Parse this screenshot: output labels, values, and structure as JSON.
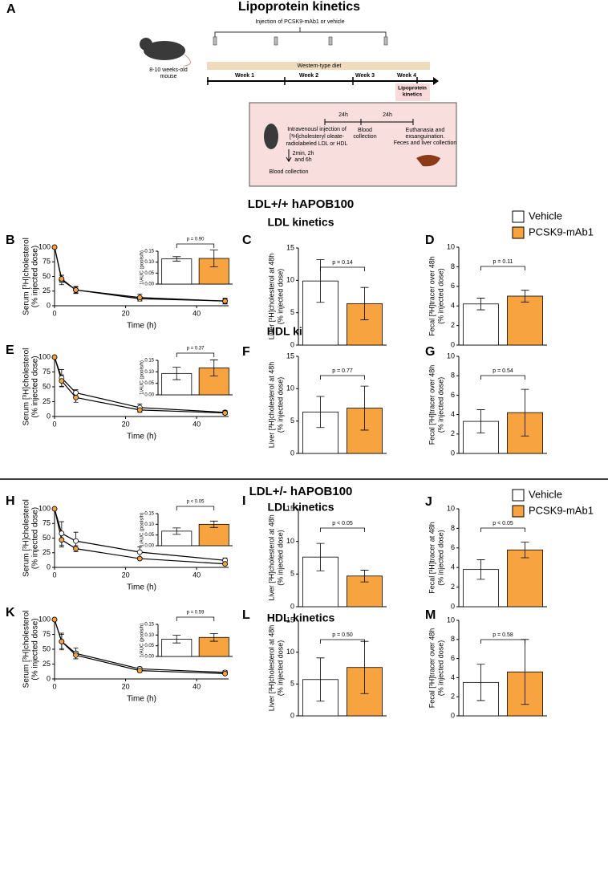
{
  "diagram": {
    "label": "A",
    "title": "Lipoprotein kinetics",
    "injection": "Injection of PCSK9-mAb1 or vehicle",
    "mouse": [
      "8-10 weeks-old",
      "mouse"
    ],
    "diet": "Western-type diet",
    "weeks": [
      "Week 1",
      "Week 2",
      "Week 3",
      "Week 4"
    ],
    "kinetics_box": [
      "Lipoprotein",
      "kinetics"
    ],
    "protocol": {
      "intervals": [
        "24h",
        "24h"
      ],
      "injection": [
        "Intravenousl injection of",
        "[³H]cholesteryl oleate-",
        "radiolabeled LDL or HDL"
      ],
      "early": [
        "2min, 2h",
        "and 6h"
      ],
      "blood_early": "Blood collection",
      "blood_24h": [
        "Blood",
        "collection"
      ],
      "end": [
        "Euthanasia and",
        "exsanguination.",
        "Feces and liver collection"
      ]
    }
  },
  "sections": [
    {
      "title": "LDL+/+ hAPOB100",
      "rows": [
        "LDL kinetics",
        "HDL kinetics"
      ]
    },
    {
      "title": "LDL+/- hAPOB100",
      "rows": [
        "LDL kinetics",
        "HDL kinetics"
      ]
    }
  ],
  "chart_data": [
    {
      "type": "line",
      "panel": "B",
      "ylabel": [
        "Serum [³H]cholesterol",
        "(% injected dose)"
      ],
      "xlabel": "Time (h)",
      "x": [
        0,
        2,
        6,
        24,
        48
      ],
      "xlim": [
        0,
        49
      ],
      "xticks": [
        0,
        20,
        40
      ],
      "ylim": [
        0,
        100
      ],
      "yticks": [
        0,
        25,
        50,
        75,
        100
      ],
      "series": [
        {
          "color": "#ffffff",
          "values": [
            100,
            44,
            27,
            12,
            8
          ],
          "errors": [
            0,
            8,
            6,
            4,
            4
          ]
        },
        {
          "color": "#f7a440",
          "values": [
            100,
            46,
            27,
            14,
            8
          ],
          "errors": [
            0,
            6,
            5,
            6,
            5
          ]
        }
      ],
      "inset": {
        "type": "bar",
        "ylabel": "1/AUC (pools/h)",
        "annotation": "p = 0.90",
        "ylim": [
          0,
          0.15
        ],
        "yticks": [
          {
            "value": 0,
            "label": "0.00"
          },
          {
            "value": 0.05,
            "label": "0.05"
          },
          {
            "value": 0.1,
            "label": "0.10"
          },
          {
            "value": 0.15,
            "label": "0.15"
          }
        ],
        "series": [
          {
            "color": "#ffffff",
            "values": [
              0.115
            ],
            "errors": [
              0.01
            ]
          },
          {
            "color": "#f7a440",
            "values": [
              0.117
            ],
            "errors": [
              0.038
            ]
          }
        ]
      }
    },
    {
      "type": "bar",
      "panel": "C",
      "ylabel": [
        "Liver [³H]cholesterol at 48h",
        "(% injected dose)"
      ],
      "annotation": "p = 0.14",
      "ylim": [
        0,
        15
      ],
      "yticks": [
        0,
        5,
        10,
        15
      ],
      "series": [
        {
          "color": "#ffffff",
          "values": [
            9.9
          ],
          "errors": [
            3.3
          ]
        },
        {
          "color": "#f7a440",
          "values": [
            6.4
          ],
          "errors": [
            2.5
          ]
        }
      ]
    },
    {
      "type": "bar",
      "panel": "D",
      "ylabel": [
        "Fecal [³H]tracer over 48h",
        "(% injected dose)"
      ],
      "annotation": "p = 0.11",
      "ylim": [
        0,
        10
      ],
      "yticks": [
        0,
        2,
        4,
        6,
        8,
        10
      ],
      "legend": true,
      "series": [
        {
          "name": "Vehicle",
          "color": "#ffffff",
          "values": [
            4.2
          ],
          "errors": [
            0.6
          ]
        },
        {
          "name": "PCSK9-mAb1",
          "color": "#f7a440",
          "values": [
            5.0
          ],
          "errors": [
            0.6
          ]
        }
      ]
    },
    {
      "type": "line",
      "panel": "E",
      "ylabel": [
        "Serum [³H]cholesterol",
        "(% injected dose)"
      ],
      "xlabel": "Time (h)",
      "x": [
        0,
        2,
        6,
        24,
        48
      ],
      "xlim": [
        0,
        49
      ],
      "xticks": [
        0,
        20,
        40
      ],
      "ylim": [
        0,
        100
      ],
      "yticks": [
        0,
        25,
        50,
        75,
        100
      ],
      "series": [
        {
          "color": "#ffffff",
          "values": [
            100,
            65,
            40,
            15,
            7
          ],
          "errors": [
            0,
            14,
            5,
            6,
            3
          ]
        },
        {
          "color": "#f7a440",
          "values": [
            100,
            60,
            32,
            11,
            6
          ],
          "errors": [
            0,
            10,
            8,
            4,
            3
          ]
        }
      ],
      "inset": {
        "type": "bar",
        "ylabel": "1/AUC (pools/h)",
        "annotation": "p = 0.37",
        "ylim": [
          0,
          0.15
        ],
        "yticks": [
          {
            "value": 0,
            "label": "0.00"
          },
          {
            "value": 0.05,
            "label": "0.05"
          },
          {
            "value": 0.1,
            "label": "0.10"
          },
          {
            "value": 0.15,
            "label": "0.15"
          }
        ],
        "series": [
          {
            "color": "#ffffff",
            "values": [
              0.093
            ],
            "errors": [
              0.027
            ]
          },
          {
            "color": "#f7a440",
            "values": [
              0.117
            ],
            "errors": [
              0.035
            ]
          }
        ]
      }
    },
    {
      "type": "bar",
      "panel": "F",
      "ylabel": [
        "Liver [³H]cholesterol at 48h",
        "(% injected dose)"
      ],
      "annotation": "p = 0.77",
      "ylim": [
        0,
        15
      ],
      "yticks": [
        0,
        5,
        10,
        15
      ],
      "series": [
        {
          "color": "#ffffff",
          "values": [
            6.4
          ],
          "errors": [
            2.4
          ]
        },
        {
          "color": "#f7a440",
          "values": [
            7.0
          ],
          "errors": [
            3.4
          ]
        }
      ]
    },
    {
      "type": "bar",
      "panel": "G",
      "ylabel": [
        "Fecal [³H]tracer over 48h",
        "(% injected dose)"
      ],
      "annotation": "p = 0.54",
      "ylim": [
        0,
        10
      ],
      "yticks": [
        0,
        2,
        4,
        6,
        8,
        10
      ],
      "series": [
        {
          "color": "#ffffff",
          "values": [
            3.3
          ],
          "errors": [
            1.2
          ]
        },
        {
          "color": "#f7a440",
          "values": [
            4.2
          ],
          "errors": [
            2.4
          ]
        }
      ]
    },
    {
      "type": "line",
      "panel": "H",
      "ylabel": [
        "Serum [³H]cholesterol",
        "(% injected dose)"
      ],
      "xlabel": "Time (h)",
      "x": [
        0,
        2,
        6,
        24,
        48
      ],
      "xlim": [
        0,
        49
      ],
      "xticks": [
        0,
        20,
        40
      ],
      "ylim": [
        0,
        100
      ],
      "yticks": [
        0,
        25,
        50,
        75,
        100
      ],
      "series": [
        {
          "color": "#ffffff",
          "values": [
            100,
            58,
            45,
            26,
            12
          ],
          "errors": [
            0,
            20,
            15,
            9,
            4
          ]
        },
        {
          "color": "#f7a440",
          "values": [
            100,
            47,
            32,
            15,
            6
          ],
          "errors": [
            0,
            12,
            5,
            2,
            2
          ]
        }
      ],
      "inset": {
        "type": "bar",
        "ylabel": "1/AUC (pools/h)",
        "annotation": "p < 0.05",
        "ylim": [
          0,
          0.15
        ],
        "yticks": [
          {
            "value": 0,
            "label": "0.00"
          },
          {
            "value": 0.05,
            "label": "0.05"
          },
          {
            "value": 0.1,
            "label": "0.10"
          },
          {
            "value": 0.15,
            "label": "0.15"
          }
        ],
        "series": [
          {
            "color": "#ffffff",
            "values": [
              0.068
            ],
            "errors": [
              0.015
            ]
          },
          {
            "color": "#f7a440",
            "values": [
              0.1
            ],
            "errors": [
              0.015
            ]
          }
        ]
      }
    },
    {
      "type": "bar",
      "panel": "I",
      "ylabel": [
        "Liver [³H]cholesterol at 48h",
        "(% injected dose)"
      ],
      "annotation": "p < 0.05",
      "ylim": [
        0,
        15
      ],
      "yticks": [
        0,
        5,
        10,
        15
      ],
      "series": [
        {
          "color": "#ffffff",
          "values": [
            7.6
          ],
          "errors": [
            2.1
          ]
        },
        {
          "color": "#f7a440",
          "values": [
            4.7
          ],
          "errors": [
            0.9
          ]
        }
      ]
    },
    {
      "type": "bar",
      "panel": "J",
      "ylabel": [
        "Fecal [³H]tracer at 48h",
        "(% injected dose)"
      ],
      "annotation": "p < 0.05",
      "ylim": [
        0,
        10
      ],
      "yticks": [
        0,
        2,
        4,
        6,
        8,
        10
      ],
      "legend": true,
      "series": [
        {
          "name": "Vehicle",
          "color": "#ffffff",
          "values": [
            3.8
          ],
          "errors": [
            1.0
          ]
        },
        {
          "name": "PCSK9-mAb1",
          "color": "#f7a440",
          "values": [
            5.8
          ],
          "errors": [
            0.8
          ]
        }
      ]
    },
    {
      "type": "line",
      "panel": "K",
      "ylabel": [
        "Serum [³H]cholesterol",
        "(% injected dose)"
      ],
      "xlabel": "Time (h)",
      "x": [
        0,
        2,
        6,
        24,
        48
      ],
      "xlim": [
        0,
        49
      ],
      "xticks": [
        0,
        20,
        40
      ],
      "ylim": [
        0,
        100
      ],
      "yticks": [
        0,
        25,
        50,
        75,
        100
      ],
      "series": [
        {
          "color": "#ffffff",
          "values": [
            100,
            63,
            43,
            17,
            11
          ],
          "errors": [
            0,
            12,
            9,
            3,
            3
          ]
        },
        {
          "color": "#f7a440",
          "values": [
            100,
            63,
            40,
            14,
            9
          ],
          "errors": [
            0,
            14,
            6,
            3,
            2
          ]
        }
      ],
      "inset": {
        "type": "bar",
        "ylabel": "1/AUC (pools/h)",
        "annotation": "p = 0.59",
        "ylim": [
          0,
          0.15
        ],
        "yticks": [
          {
            "value": 0,
            "label": "0.00"
          },
          {
            "value": 0.05,
            "label": "0.05"
          },
          {
            "value": 0.1,
            "label": "0.10"
          },
          {
            "value": 0.15,
            "label": "0.15"
          }
        ],
        "series": [
          {
            "color": "#ffffff",
            "values": [
              0.081
            ],
            "errors": [
              0.018
            ]
          },
          {
            "color": "#f7a440",
            "values": [
              0.089
            ],
            "errors": [
              0.018
            ]
          }
        ]
      }
    },
    {
      "type": "bar",
      "panel": "L",
      "ylabel": [
        "Liver [³H]cholesterol at 48h",
        "(% injected dose)"
      ],
      "annotation": "p = 0.50",
      "ylim": [
        0,
        15
      ],
      "yticks": [
        0,
        5,
        10,
        15
      ],
      "series": [
        {
          "color": "#ffffff",
          "values": [
            5.7
          ],
          "errors": [
            3.4
          ]
        },
        {
          "color": "#f7a440",
          "values": [
            7.6
          ],
          "errors": [
            4.1
          ]
        }
      ]
    },
    {
      "type": "bar",
      "panel": "M",
      "ylabel": [
        "Fecal [³H]tracer over 48h",
        "(% injected dose)"
      ],
      "annotation": "p = 0.58",
      "ylim": [
        0,
        10
      ],
      "yticks": [
        0,
        2,
        4,
        6,
        8,
        10
      ],
      "series": [
        {
          "color": "#ffffff",
          "values": [
            3.5
          ],
          "errors": [
            1.9
          ]
        },
        {
          "color": "#f7a440",
          "values": [
            4.6
          ],
          "errors": [
            3.4
          ]
        }
      ]
    }
  ]
}
